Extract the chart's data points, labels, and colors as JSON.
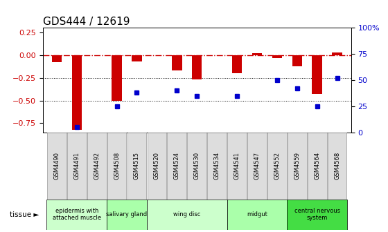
{
  "title": "GDS444 / 12619",
  "samples": [
    "GSM4490",
    "GSM4491",
    "GSM4492",
    "GSM4508",
    "GSM4515",
    "GSM4520",
    "GSM4524",
    "GSM4530",
    "GSM4534",
    "GSM4541",
    "GSM4547",
    "GSM4552",
    "GSM4559",
    "GSM4564",
    "GSM4568"
  ],
  "log_ratio": [
    -0.08,
    -0.82,
    0.0,
    -0.5,
    -0.07,
    0.0,
    -0.17,
    -0.27,
    0.0,
    -0.2,
    0.02,
    -0.03,
    -0.12,
    -0.43,
    0.03
  ],
  "percentile": [
    null,
    5,
    null,
    25,
    38,
    null,
    40,
    35,
    null,
    35,
    null,
    50,
    42,
    25,
    52
  ],
  "tissues": [
    {
      "label": "epidermis with\nattached muscle",
      "start": 0,
      "end": 3,
      "color": "#ccffcc"
    },
    {
      "label": "salivary gland",
      "start": 3,
      "end": 5,
      "color": "#aaffaa"
    },
    {
      "label": "wing disc",
      "start": 5,
      "end": 9,
      "color": "#ccffcc"
    },
    {
      "label": "midgut",
      "start": 9,
      "end": 12,
      "color": "#aaffaa"
    },
    {
      "label": "central nervous\nsystem",
      "start": 12,
      "end": 15,
      "color": "#44dd44"
    }
  ],
  "bar_color": "#cc0000",
  "dot_color": "#0000cc",
  "ylim_left": [
    -0.85,
    0.3
  ],
  "ylim_right": [
    0,
    100
  ],
  "yticks_left": [
    -0.75,
    -0.5,
    -0.25,
    0,
    0.25
  ],
  "yticks_right": [
    0,
    25,
    50,
    75,
    100
  ],
  "background_color": "#ffffff",
  "hline_color": "#cc0000",
  "title_fontsize": 11,
  "tick_fontsize": 7,
  "bar_width": 0.5
}
